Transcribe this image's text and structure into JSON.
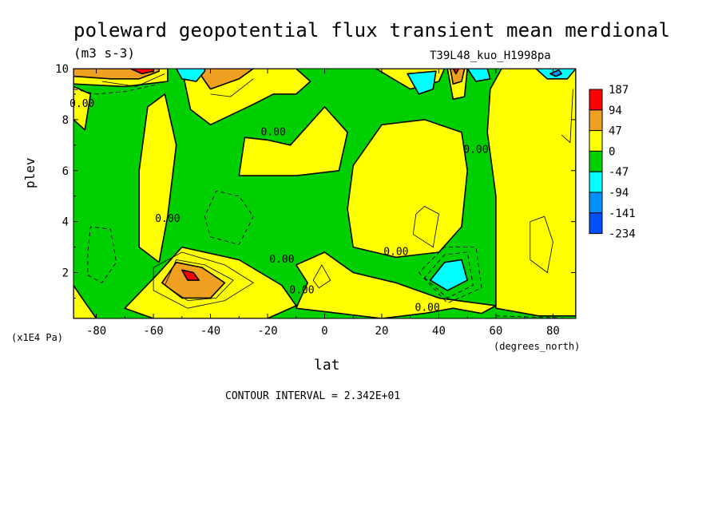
{
  "chart_data": {
    "type": "heatmap",
    "title": "poleward geopotential flux transient mean merdional",
    "units": "(m3 s-3)",
    "run_label": "T39L48_kuo_H1998pa",
    "xlabel": "lat",
    "x_units": "(degrees_north)",
    "ylabel": "plev",
    "y_units": "(x1E4 Pa)",
    "contour_interval_text": "CONTOUR INTERVAL = 2.342E+01",
    "xlim": [
      -88,
      88
    ],
    "ylim": [
      10,
      0.2
    ],
    "x_ticks": [
      -80,
      -60,
      -40,
      -20,
      0,
      20,
      40,
      60,
      80
    ],
    "x_tick_labels": [
      "-80",
      "-60",
      "-40",
      "-20",
      "0",
      "20",
      "40",
      "60",
      "80"
    ],
    "y_ticks": [
      2,
      4,
      6,
      8,
      10
    ],
    "y_tick_labels": [
      "2",
      "4",
      "6",
      "8",
      "10"
    ],
    "contour_labels": [
      {
        "text": "0.00",
        "x": 36,
        "y": 0.6
      },
      {
        "text": "0.00",
        "x": -8,
        "y": 1.3
      },
      {
        "text": "0.00",
        "x": -15,
        "y": 2.5
      },
      {
        "text": "0.00",
        "x": 25,
        "y": 2.8
      },
      {
        "text": "0.00",
        "x": -55,
        "y": 4.1
      },
      {
        "text": "0.00",
        "x": -18,
        "y": 7.5
      },
      {
        "text": "0.00",
        "x": 53,
        "y": 6.8
      },
      {
        "text": "0.00",
        "x": -85,
        "y": 8.6
      }
    ],
    "legend": {
      "placement": "right",
      "levels": [
        "187",
        "94",
        "47",
        "0",
        "-47",
        "-94",
        "-141",
        "-234"
      ],
      "colors": [
        "#ff0000",
        "#f0a020",
        "#ffff00",
        "#00d000",
        "#00ffff",
        "#0090ff",
        "#0050ff"
      ]
    },
    "regions": [
      {
        "color": "#ffff00",
        "points": [
          [
            -60,
            0.2
          ],
          [
            -20,
            0.2
          ],
          [
            -10,
            0.7
          ],
          [
            -15,
            1.5
          ],
          [
            -30,
            2.5
          ],
          [
            -50,
            3.0
          ],
          [
            -58,
            2.0
          ],
          [
            -70,
            0.6
          ]
        ]
      },
      {
        "color": "#ffff00",
        "points": [
          [
            -88,
            0.2
          ],
          [
            -80,
            0.2
          ],
          [
            -85,
            1.0
          ],
          [
            -88,
            1.5
          ]
        ]
      },
      {
        "color": "#ffff00",
        "points": [
          [
            -10,
            0.6
          ],
          [
            5,
            0.4
          ],
          [
            20,
            0.2
          ],
          [
            35,
            0.4
          ],
          [
            45,
            0.6
          ],
          [
            55,
            0.4
          ],
          [
            60,
            0.7
          ],
          [
            40,
            1.0
          ],
          [
            25,
            1.6
          ],
          [
            10,
            2.0
          ],
          [
            0,
            2.8
          ],
          [
            -10,
            2.3
          ],
          [
            -6,
            1.6
          ]
        ]
      },
      {
        "color": "#ffff00",
        "points": [
          [
            60,
            0.6
          ],
          [
            75,
            0.3
          ],
          [
            88,
            0.3
          ],
          [
            88,
            10
          ],
          [
            62,
            10
          ],
          [
            58,
            9.2
          ],
          [
            57,
            7.5
          ],
          [
            60,
            5
          ],
          [
            60,
            2.5
          ]
        ]
      },
      {
        "color": "#ffff00",
        "points": [
          [
            -65,
            3.0
          ],
          [
            -58,
            2.4
          ],
          [
            -55,
            4.2
          ],
          [
            -52,
            7.0
          ],
          [
            -56,
            9.0
          ],
          [
            -62,
            8.5
          ],
          [
            -65,
            6
          ]
        ]
      },
      {
        "color": "#ffff00",
        "points": [
          [
            -30,
            5.8
          ],
          [
            -10,
            5.8
          ],
          [
            5,
            6.0
          ],
          [
            8,
            7.5
          ],
          [
            0,
            8.5
          ],
          [
            -12,
            7.0
          ],
          [
            -20,
            7.2
          ],
          [
            -28,
            7.3
          ]
        ]
      },
      {
        "color": "#ffff00",
        "points": [
          [
            10,
            3.0
          ],
          [
            25,
            2.6
          ],
          [
            40,
            2.8
          ],
          [
            48,
            3.8
          ],
          [
            50,
            6.0
          ],
          [
            48,
            7.5
          ],
          [
            35,
            8.0
          ],
          [
            20,
            7.8
          ],
          [
            10,
            6.2
          ],
          [
            8,
            4.5
          ]
        ]
      },
      {
        "color": "#ffff00",
        "points": [
          [
            -50,
            10
          ],
          [
            -47,
            8.4
          ],
          [
            -40,
            7.8
          ],
          [
            -25,
            8.6
          ],
          [
            -18,
            9.0
          ],
          [
            -10,
            9.0
          ],
          [
            -5,
            9.5
          ],
          [
            -10,
            10
          ]
        ]
      },
      {
        "color": "#ffff00",
        "points": [
          [
            -88,
            8.0
          ],
          [
            -84,
            7.6
          ],
          [
            -82,
            9.0
          ],
          [
            -88,
            9.3
          ]
        ]
      },
      {
        "color": "#ffff00",
        "points": [
          [
            -88,
            9.4
          ],
          [
            -70,
            9.3
          ],
          [
            -55,
            9.5
          ],
          [
            -55,
            10
          ],
          [
            -88,
            10
          ]
        ]
      },
      {
        "color": "#ffff00",
        "points": [
          [
            18,
            10
          ],
          [
            30,
            9.2
          ],
          [
            40,
            9.5
          ],
          [
            42,
            10
          ]
        ]
      },
      {
        "color": "#ffff00",
        "points": [
          [
            43,
            10
          ],
          [
            45,
            8.8
          ],
          [
            49,
            8.9
          ],
          [
            50,
            10
          ]
        ]
      },
      {
        "color": "#f0a020",
        "points": [
          [
            -57,
            1.6
          ],
          [
            -50,
            1.0
          ],
          [
            -40,
            1.0
          ],
          [
            -35,
            1.6
          ],
          [
            -43,
            2.2
          ],
          [
            -52,
            2.4
          ]
        ]
      },
      {
        "color": "#f0a020",
        "points": [
          [
            -88,
            9.7
          ],
          [
            -75,
            9.6
          ],
          [
            -65,
            9.6
          ],
          [
            -58,
            9.9
          ],
          [
            -58,
            10
          ],
          [
            -88,
            10
          ]
        ]
      },
      {
        "color": "#f0a020",
        "points": [
          [
            -45,
            10
          ],
          [
            -40,
            9.2
          ],
          [
            -30,
            9.6
          ],
          [
            -25,
            10
          ]
        ]
      },
      {
        "color": "#f0a020",
        "points": [
          [
            44,
            10
          ],
          [
            45,
            9.4
          ],
          [
            48,
            9.5
          ],
          [
            49,
            10
          ]
        ]
      },
      {
        "color": "#ff0000",
        "points": [
          [
            -50,
            2.1
          ],
          [
            -48,
            1.7
          ],
          [
            -44,
            1.7
          ],
          [
            -46,
            2.0
          ]
        ]
      },
      {
        "color": "#ff0000",
        "points": [
          [
            -68,
            10
          ],
          [
            -64,
            9.8
          ],
          [
            -60,
            9.9
          ],
          [
            -60,
            10
          ]
        ]
      },
      {
        "color": "#ff0000",
        "points": [
          [
            45,
            10
          ],
          [
            46,
            9.8
          ],
          [
            47,
            10
          ]
        ]
      },
      {
        "color": "#00ffff",
        "points": [
          [
            37,
            1.7
          ],
          [
            43,
            1.3
          ],
          [
            50,
            1.7
          ],
          [
            48,
            2.5
          ],
          [
            42,
            2.4
          ]
        ]
      },
      {
        "color": "#00ffff",
        "points": [
          [
            -52,
            10
          ],
          [
            -50,
            9.6
          ],
          [
            -45,
            9.5
          ],
          [
            -42,
            9.9
          ],
          [
            -42,
            10
          ]
        ]
      },
      {
        "color": "#00ffff",
        "points": [
          [
            29,
            9.8
          ],
          [
            33,
            9.0
          ],
          [
            38,
            9.2
          ],
          [
            39,
            9.9
          ]
        ]
      },
      {
        "color": "#00ffff",
        "points": [
          [
            50,
            10
          ],
          [
            53,
            9.5
          ],
          [
            58,
            9.6
          ],
          [
            57,
            10
          ]
        ]
      },
      {
        "color": "#00ffff",
        "points": [
          [
            74,
            10
          ],
          [
            78,
            9.6
          ],
          [
            85,
            9.6
          ],
          [
            88,
            10
          ]
        ]
      },
      {
        "color": "#0090ff",
        "points": [
          [
            79,
            9.8
          ],
          [
            81,
            9.7
          ],
          [
            83,
            9.8
          ],
          [
            82,
            9.95
          ]
        ]
      }
    ],
    "dashed_lines": [
      {
        "points": [
          [
            -83,
            1.9
          ],
          [
            -78,
            1.6
          ],
          [
            -73,
            2.4
          ],
          [
            -75,
            3.7
          ],
          [
            -82,
            3.8
          ],
          [
            -83,
            2.8
          ],
          [
            -83,
            1.9
          ]
        ]
      },
      {
        "points": [
          [
            -40,
            3.4
          ],
          [
            -30,
            3.1
          ],
          [
            -25,
            4.2
          ],
          [
            -30,
            5.0
          ],
          [
            -38,
            5.2
          ],
          [
            -42,
            4.2
          ],
          [
            -40,
            3.4
          ]
        ]
      },
      {
        "points": [
          [
            35,
            1.8
          ],
          [
            43,
            1.0
          ],
          [
            52,
            1.5
          ],
          [
            50,
            2.8
          ],
          [
            42,
            2.7
          ],
          [
            35,
            1.8
          ]
        ]
      },
      {
        "points": [
          [
            33,
            2.0
          ],
          [
            43,
            0.8
          ],
          [
            55,
            1.4
          ],
          [
            53,
            3.0
          ],
          [
            42,
            3.0
          ],
          [
            33,
            2.0
          ]
        ]
      },
      {
        "points": [
          [
            -88,
            9.2
          ],
          [
            -80,
            9.0
          ],
          [
            -70,
            9.1
          ],
          [
            -58,
            9.4
          ]
        ]
      },
      {
        "points": [
          [
            60,
            0.3
          ],
          [
            88,
            0.2
          ]
        ]
      }
    ],
    "solid_thin_lines": [
      {
        "points": [
          [
            -60,
            1.3
          ],
          [
            -48,
            0.6
          ],
          [
            -35,
            0.9
          ],
          [
            -25,
            1.6
          ],
          [
            -35,
            2.3
          ],
          [
            -50,
            2.8
          ],
          [
            -60,
            2.2
          ],
          [
            -60,
            1.3
          ]
        ]
      },
      {
        "points": [
          [
            -56,
            1.5
          ],
          [
            -48,
            0.9
          ],
          [
            -38,
            1.0
          ],
          [
            -32,
            1.7
          ],
          [
            -42,
            2.3
          ],
          [
            -52,
            2.5
          ],
          [
            -56,
            1.5
          ]
        ]
      },
      {
        "points": [
          [
            -4,
            1.7
          ],
          [
            -2,
            1.4
          ],
          [
            2,
            1.7
          ],
          [
            -1,
            2.3
          ],
          [
            -4,
            1.7
          ]
        ]
      },
      {
        "points": [
          [
            31,
            3.5
          ],
          [
            38,
            3.0
          ],
          [
            40,
            4.3
          ],
          [
            35,
            4.6
          ],
          [
            32,
            4.3
          ],
          [
            31,
            3.5
          ]
        ]
      },
      {
        "points": [
          [
            72,
            2.5
          ],
          [
            78,
            2.0
          ],
          [
            80,
            3.2
          ],
          [
            77,
            4.2
          ],
          [
            72,
            4.0
          ],
          [
            72,
            2.5
          ]
        ]
      },
      {
        "points": [
          [
            -40,
            9.0
          ],
          [
            -33,
            8.9
          ],
          [
            -25,
            9.6
          ]
        ]
      },
      {
        "points": [
          [
            83,
            7.4
          ],
          [
            86,
            7.1
          ],
          [
            87,
            9.2
          ]
        ]
      },
      {
        "points": [
          [
            -78,
            9.5
          ],
          [
            -66,
            9.3
          ],
          [
            -56,
            9.8
          ]
        ]
      }
    ]
  }
}
